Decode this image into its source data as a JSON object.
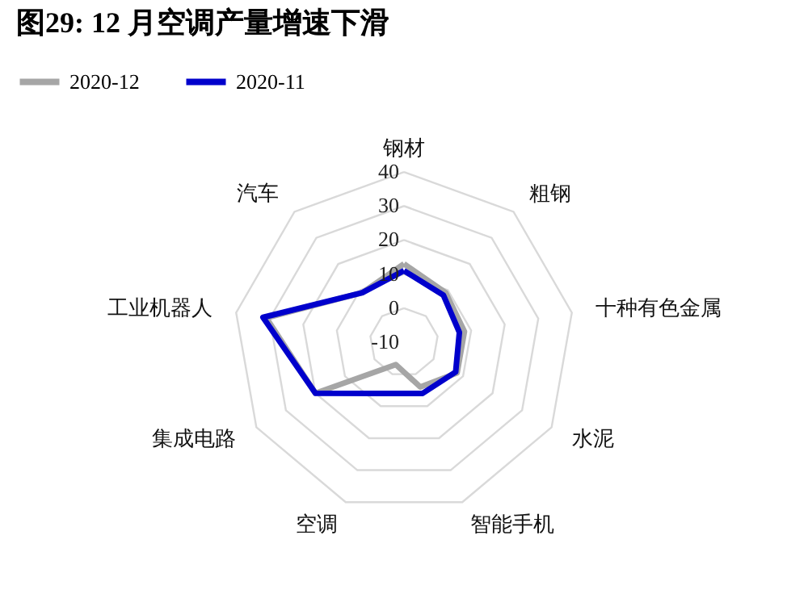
{
  "chart_data": {
    "type": "radar",
    "title": "图29: 12 月空调产量增速下滑",
    "categories": [
      "钢材",
      "粗钢",
      "十种有色金属",
      "水泥",
      "智能手机",
      "空调",
      "集成电路",
      "工业机器人",
      "汽车"
    ],
    "series": [
      {
        "name": "2020-12",
        "color": "#a6a6a6",
        "values": [
          13,
          9,
          8,
          8,
          4,
          -3,
          20,
          31,
          9
        ]
      },
      {
        "name": "2020-11",
        "color": "#0000cc",
        "values": [
          11,
          8,
          6.5,
          7.5,
          6,
          6,
          20,
          32,
          9
        ]
      }
    ],
    "ylim": [
      -10,
      40
    ],
    "yticks": [
      40,
      30,
      20,
      10,
      0,
      -10
    ],
    "grid": true,
    "legend": "top"
  }
}
